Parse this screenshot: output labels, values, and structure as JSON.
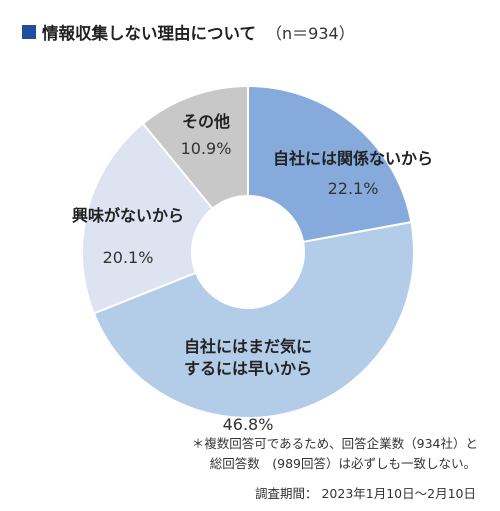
{
  "header": {
    "title": "情報収集しない理由について",
    "n_label": "（n＝934）"
  },
  "colors": {
    "title_marker": "#1f4e9e",
    "background": "#ffffff"
  },
  "chart_data": {
    "type": "pie",
    "style": "donut",
    "slices": [
      {
        "label": [
          "自社には関係ないから"
        ],
        "value": 22.1,
        "display": "22.1%",
        "color": "#85aadb"
      },
      {
        "label": [
          "自社にはまだ気に",
          "するには早いから"
        ],
        "value": 46.8,
        "display": "46.8%",
        "color": "#b3cde9"
      },
      {
        "label": [
          "興味がないから"
        ],
        "value": 20.1,
        "display": "20.1%",
        "color": "#dde3f0"
      },
      {
        "label": [
          "その他"
        ],
        "value": 10.9,
        "display": "10.9%",
        "color": "#c8c8c8"
      }
    ],
    "start": "top",
    "direction": "clockwise"
  },
  "footnote": {
    "line1": "＊複数回答可であるため、回答企業数（934社）と",
    "line2": "総回答数　(989回答）は必ずしも一致しない。"
  },
  "survey_period": "調査期間： 2023年1月10日〜2月10日"
}
